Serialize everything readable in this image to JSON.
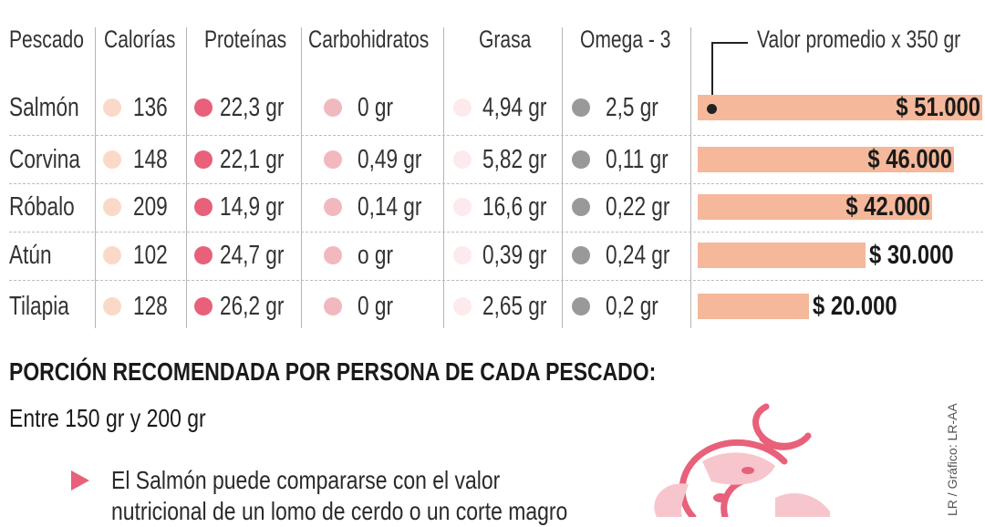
{
  "headers": {
    "fish": "Pescado",
    "calories": "Calorías",
    "protein": "Proteínas",
    "carbs": "Carbohidratos",
    "fat": "Grasa",
    "omega": "Omega - 3",
    "price": "Valor promedio x 350 gr"
  },
  "rows": [
    {
      "name": "Salmón",
      "calories": "136",
      "protein": "22,3 gr",
      "carbs": "0 gr",
      "fat": "4,94 gr",
      "omega": "2,5 gr",
      "price": "$ 51.000"
    },
    {
      "name": "Corvina",
      "calories": "148",
      "protein": "22,1 gr",
      "carbs": "0,49 gr",
      "fat": "5,82 gr",
      "omega": "0,11 gr",
      "price": "$ 46.000"
    },
    {
      "name": "Róbalo",
      "calories": "209",
      "protein": "14,9 gr",
      "carbs": "0,14 gr",
      "fat": "16,6 gr",
      "omega": "0,22 gr",
      "price": "$ 42.000"
    },
    {
      "name": "Atún",
      "calories": "102",
      "protein": "24,7 gr",
      "carbs": "o gr",
      "fat": "0,39 gr",
      "omega": "0,24 gr",
      "price": "$ 30.000"
    },
    {
      "name": "Tilapia",
      "calories": "128",
      "protein": "26,2 gr",
      "carbs": "0 gr",
      "fat": "2,65 gr",
      "omega": "0,2 gr",
      "price": "$ 20.000"
    }
  ],
  "colors": {
    "calories": "#fbd9c8",
    "protein": "#e8607a",
    "carbs": "#f2b8c0",
    "fat": "#fdeaec",
    "omega": "#999999",
    "bar": "#f5b89a"
  },
  "chart_data": {
    "type": "bar",
    "orientation": "horizontal",
    "title": "Valor promedio x 350 gr",
    "categories": [
      "Salmón",
      "Corvina",
      "Róbalo",
      "Atún",
      "Tilapia"
    ],
    "values": [
      51000,
      46000,
      42000,
      30000,
      20000
    ],
    "labels": [
      "$ 51.000",
      "$ 46.000",
      "$ 42.000",
      "$ 30.000",
      "$ 20.000"
    ],
    "xlim": [
      0,
      51000
    ]
  },
  "portion": {
    "title": "PORCIÓN RECOMENDADA POR PERSONA DE CADA PESCADO:",
    "range": "Entre 150 gr y 200 gr"
  },
  "notes": [
    "El Salmón puede compararse con el valor",
    "nutricional de un lomo de cerdo o un corte magro"
  ],
  "credit": "LR / Gráfico: LR-AA"
}
